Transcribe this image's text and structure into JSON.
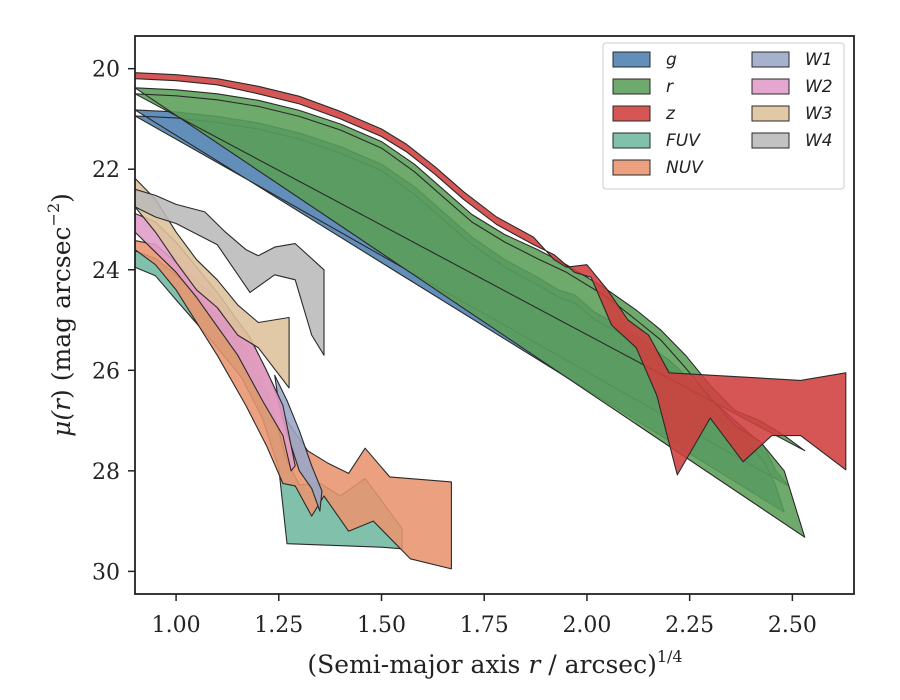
{
  "chart_data": {
    "type": "area",
    "xlabel": "(Semi-major axis r / arcsec)^{1/4}",
    "xlabel_parts": {
      "prefix": "(Semi-major axis ",
      "var": "r",
      "mid": " / arcsec)",
      "exp": "1/4"
    },
    "ylabel": "μ(r) (mag arcsec^-2)",
    "ylabel_parts": {
      "mu": "μ(",
      "var": "r",
      "post": ") (mag arcsec",
      "exp": "−2",
      "close": ")"
    },
    "xlim": [
      0.9,
      2.65
    ],
    "ylim": [
      30.45,
      19.35
    ],
    "y_inverted": true,
    "xticks": [
      1.0,
      1.25,
      1.5,
      1.75,
      2.0,
      2.25,
      2.5
    ],
    "xtick_labels": [
      "1.00",
      "1.25",
      "1.50",
      "1.75",
      "2.00",
      "2.25",
      "2.50"
    ],
    "yticks": [
      20,
      22,
      24,
      26,
      28,
      30
    ],
    "ytick_labels": [
      "20",
      "22",
      "24",
      "26",
      "28",
      "30"
    ],
    "grid": false,
    "legend_placement": "top-right",
    "legend_columns": 2,
    "series": [
      {
        "name": "g",
        "color": "#4c7faf",
        "upper": [
          [
            0.9,
            20.82
          ],
          [
            1.0,
            20.86
          ],
          [
            1.1,
            20.95
          ],
          [
            1.2,
            21.08
          ],
          [
            1.3,
            21.28
          ],
          [
            1.4,
            21.55
          ],
          [
            1.5,
            21.9
          ],
          [
            1.58,
            22.35
          ],
          [
            1.65,
            22.85
          ],
          [
            1.72,
            23.35
          ],
          [
            1.8,
            23.8
          ],
          [
            1.88,
            24.15
          ],
          [
            1.93,
            24.4
          ],
          [
            1.97,
            24.5
          ],
          [
            2.02,
            24.85
          ],
          [
            2.1,
            25.2
          ],
          [
            2.2,
            25.8
          ],
          [
            2.28,
            26.4
          ],
          [
            2.36,
            27.0
          ],
          [
            2.43,
            27.5
          ],
          [
            2.46,
            28.0
          ],
          [
            2.49,
            28.3
          ]
        ],
        "lower": [
          [
            0.9,
            20.94
          ],
          [
            1.0,
            20.98
          ],
          [
            1.1,
            21.07
          ],
          [
            1.2,
            21.2
          ],
          [
            1.3,
            21.4
          ],
          [
            1.4,
            21.68
          ],
          [
            1.5,
            22.03
          ],
          [
            1.58,
            22.5
          ],
          [
            1.65,
            23.0
          ],
          [
            1.72,
            23.5
          ],
          [
            1.8,
            23.95
          ],
          [
            1.88,
            24.3
          ],
          [
            1.93,
            24.55
          ],
          [
            1.97,
            24.65
          ],
          [
            2.02,
            25.0
          ],
          [
            2.1,
            25.35
          ],
          [
            2.2,
            26.0
          ],
          [
            2.28,
            26.6
          ],
          [
            2.36,
            27.2
          ],
          [
            2.43,
            27.8
          ],
          [
            2.46,
            28.3
          ],
          [
            2.48,
            28.82
          ]
        ]
      },
      {
        "name": "r",
        "color": "#5a9e56",
        "upper": [
          [
            0.9,
            20.38
          ],
          [
            1.0,
            20.42
          ],
          [
            1.1,
            20.5
          ],
          [
            1.2,
            20.63
          ],
          [
            1.3,
            20.83
          ],
          [
            1.4,
            21.1
          ],
          [
            1.5,
            21.45
          ],
          [
            1.58,
            21.9
          ],
          [
            1.65,
            22.4
          ],
          [
            1.72,
            22.9
          ],
          [
            1.8,
            23.3
          ],
          [
            1.88,
            23.6
          ],
          [
            1.95,
            23.9
          ],
          [
            2.05,
            24.4
          ],
          [
            2.12,
            24.8
          ],
          [
            2.18,
            25.2
          ],
          [
            2.24,
            25.7
          ],
          [
            2.3,
            26.3
          ],
          [
            2.36,
            26.8
          ],
          [
            2.42,
            27.0
          ],
          [
            2.48,
            27.3
          ],
          [
            2.53,
            27.6
          ]
        ],
        "lower": [
          [
            0.9,
            20.5
          ],
          [
            1.0,
            20.54
          ],
          [
            1.1,
            20.62
          ],
          [
            1.2,
            20.75
          ],
          [
            1.3,
            20.95
          ],
          [
            1.4,
            21.22
          ],
          [
            1.5,
            21.58
          ],
          [
            1.58,
            22.05
          ],
          [
            1.65,
            22.55
          ],
          [
            1.72,
            23.05
          ],
          [
            1.8,
            23.45
          ],
          [
            1.88,
            23.78
          ],
          [
            1.95,
            24.05
          ],
          [
            2.05,
            24.55
          ],
          [
            2.12,
            25.0
          ],
          [
            2.18,
            25.4
          ],
          [
            2.24,
            25.95
          ],
          [
            2.3,
            26.55
          ],
          [
            2.36,
            27.1
          ],
          [
            2.42,
            27.4
          ],
          [
            2.48,
            28.0
          ],
          [
            2.53,
            29.32
          ]
        ]
      },
      {
        "name": "z",
        "color": "#d03f3f",
        "upper": [
          [
            0.9,
            20.08
          ],
          [
            1.0,
            20.12
          ],
          [
            1.1,
            20.2
          ],
          [
            1.2,
            20.35
          ],
          [
            1.3,
            20.55
          ],
          [
            1.4,
            20.85
          ],
          [
            1.5,
            21.2
          ],
          [
            1.56,
            21.5
          ],
          [
            1.63,
            21.95
          ],
          [
            1.7,
            22.45
          ],
          [
            1.78,
            22.95
          ],
          [
            1.87,
            23.35
          ],
          [
            1.92,
            23.8
          ],
          [
            1.95,
            23.95
          ],
          [
            2.0,
            23.9
          ],
          [
            2.05,
            24.4
          ],
          [
            2.1,
            25.0
          ],
          [
            2.15,
            25.3
          ],
          [
            2.2,
            26.05
          ],
          [
            2.52,
            26.2
          ],
          [
            2.63,
            26.05
          ]
        ],
        "lower": [
          [
            2.63,
            27.98
          ],
          [
            2.52,
            27.3
          ],
          [
            2.45,
            27.3
          ],
          [
            2.38,
            27.82
          ],
          [
            2.3,
            26.95
          ],
          [
            2.22,
            28.08
          ],
          [
            2.17,
            26.5
          ],
          [
            2.12,
            25.55
          ],
          [
            2.06,
            25.1
          ],
          [
            2.01,
            24.15
          ],
          [
            1.97,
            24.05
          ],
          [
            1.92,
            23.7
          ],
          [
            1.87,
            23.5
          ],
          [
            1.78,
            23.1
          ],
          [
            1.7,
            22.6
          ],
          [
            1.63,
            22.1
          ],
          [
            1.56,
            21.65
          ],
          [
            1.5,
            21.35
          ],
          [
            1.4,
            21.0
          ],
          [
            1.3,
            20.7
          ],
          [
            1.2,
            20.5
          ],
          [
            1.1,
            20.32
          ],
          [
            1.0,
            20.24
          ],
          [
            0.9,
            20.2
          ]
        ]
      },
      {
        "name": "FUV",
        "color": "#6fb8a0",
        "upper": [
          [
            0.9,
            23.62
          ],
          [
            0.95,
            23.78
          ],
          [
            1.0,
            24.1
          ],
          [
            1.1,
            24.9
          ],
          [
            1.18,
            25.65
          ],
          [
            1.23,
            26.6
          ],
          [
            1.27,
            27.8
          ],
          [
            1.3,
            28.28
          ],
          [
            1.35,
            28.25
          ],
          [
            1.4,
            28.5
          ],
          [
            1.46,
            28.15
          ],
          [
            1.55,
            29.15
          ]
        ],
        "lower": [
          [
            1.55,
            29.55
          ],
          [
            1.5,
            29.52
          ],
          [
            1.27,
            29.45
          ],
          [
            1.25,
            27.95
          ],
          [
            1.21,
            26.95
          ],
          [
            1.16,
            26.15
          ],
          [
            1.08,
            25.35
          ],
          [
            1.0,
            24.6
          ],
          [
            0.95,
            24.12
          ],
          [
            0.9,
            23.95
          ]
        ]
      },
      {
        "name": "NUV",
        "color": "#e8946e",
        "upper": [
          [
            0.9,
            23.42
          ],
          [
            0.95,
            23.5
          ],
          [
            1.0,
            23.85
          ],
          [
            1.1,
            24.6
          ],
          [
            1.18,
            25.35
          ],
          [
            1.23,
            26.2
          ],
          [
            1.27,
            27.0
          ],
          [
            1.32,
            27.6
          ],
          [
            1.37,
            27.85
          ],
          [
            1.42,
            28.05
          ],
          [
            1.46,
            27.55
          ],
          [
            1.52,
            28.12
          ],
          [
            1.67,
            28.22
          ]
        ],
        "lower": [
          [
            1.67,
            29.95
          ],
          [
            1.57,
            29.75
          ],
          [
            1.48,
            29.0
          ],
          [
            1.42,
            29.2
          ],
          [
            1.36,
            28.5
          ],
          [
            1.33,
            28.9
          ],
          [
            1.29,
            28.3
          ],
          [
            1.26,
            28.25
          ],
          [
            1.22,
            27.5
          ],
          [
            1.17,
            26.7
          ],
          [
            1.1,
            25.7
          ],
          [
            1.0,
            24.4
          ],
          [
            0.95,
            23.9
          ],
          [
            0.9,
            23.6
          ]
        ]
      },
      {
        "name": "W1",
        "color": "#98a6c6",
        "upper": [
          [
            1.24,
            26.1
          ],
          [
            1.27,
            26.6
          ],
          [
            1.3,
            27.2
          ],
          [
            1.33,
            27.9
          ],
          [
            1.355,
            28.4
          ]
        ],
        "lower": [
          [
            1.35,
            28.8
          ],
          [
            1.33,
            28.35
          ],
          [
            1.3,
            28.0
          ],
          [
            1.27,
            27.25
          ],
          [
            1.25,
            26.65
          ]
        ]
      },
      {
        "name": "W2",
        "color": "#e09cc9",
        "upper": [
          [
            0.9,
            22.88
          ],
          [
            0.95,
            23.05
          ],
          [
            1.0,
            23.45
          ],
          [
            1.1,
            24.45
          ],
          [
            1.18,
            25.35
          ],
          [
            1.22,
            26.0
          ],
          [
            1.26,
            26.7
          ],
          [
            1.29,
            27.9
          ]
        ],
        "lower": [
          [
            1.28,
            28.0
          ],
          [
            1.26,
            27.3
          ],
          [
            1.21,
            26.6
          ],
          [
            1.15,
            25.7
          ],
          [
            1.05,
            24.55
          ],
          [
            1.0,
            24.05
          ],
          [
            0.95,
            23.65
          ],
          [
            0.9,
            23.25
          ]
        ]
      },
      {
        "name": "W3",
        "color": "#ddc29b",
        "upper": [
          [
            0.9,
            22.18
          ],
          [
            0.95,
            22.6
          ],
          [
            1.0,
            23.25
          ],
          [
            1.05,
            23.8
          ],
          [
            1.1,
            24.2
          ],
          [
            1.15,
            24.7
          ],
          [
            1.2,
            25.05
          ],
          [
            1.275,
            24.95
          ]
        ],
        "lower": [
          [
            1.275,
            26.35
          ],
          [
            1.2,
            25.55
          ],
          [
            1.15,
            25.3
          ],
          [
            1.1,
            24.75
          ],
          [
            1.05,
            24.4
          ],
          [
            1.0,
            23.85
          ],
          [
            0.95,
            23.25
          ],
          [
            0.9,
            22.75
          ]
        ]
      },
      {
        "name": "W4",
        "color": "#b9b9b9",
        "upper": [
          [
            0.9,
            22.4
          ],
          [
            0.95,
            22.52
          ],
          [
            1.0,
            22.7
          ],
          [
            1.07,
            22.85
          ],
          [
            1.12,
            23.25
          ],
          [
            1.17,
            23.6
          ],
          [
            1.2,
            23.72
          ],
          [
            1.24,
            23.55
          ],
          [
            1.29,
            23.48
          ],
          [
            1.36,
            24.0
          ]
        ],
        "lower": [
          [
            1.36,
            25.7
          ],
          [
            1.33,
            25.3
          ],
          [
            1.29,
            24.2
          ],
          [
            1.24,
            24.1
          ],
          [
            1.18,
            24.45
          ],
          [
            1.1,
            23.5
          ],
          [
            1.0,
            23.08
          ],
          [
            0.95,
            22.95
          ],
          [
            0.9,
            22.75
          ]
        ]
      }
    ]
  }
}
